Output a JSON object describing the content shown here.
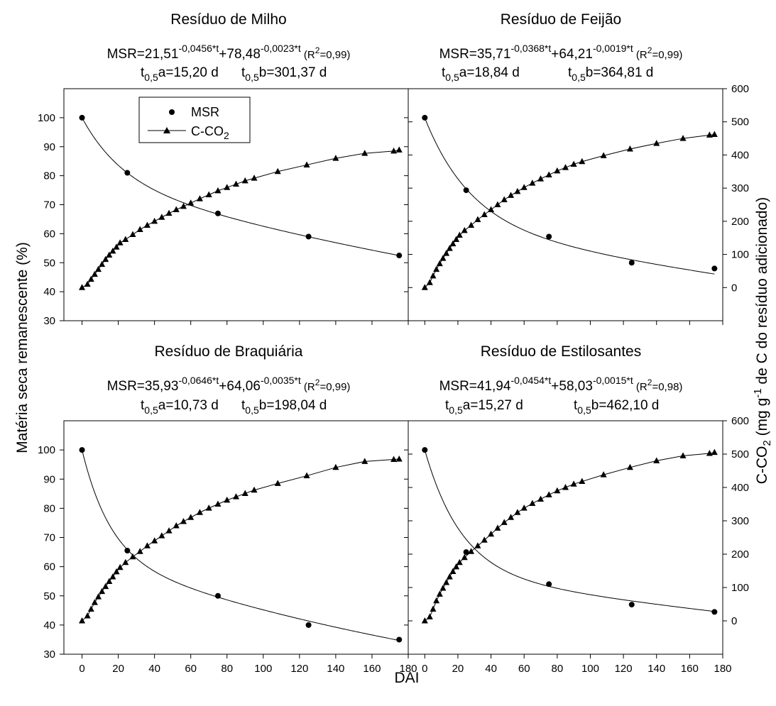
{
  "figure": {
    "xlabel": "DAI",
    "ylabel_left": "Matéria seca remanescente (%)",
    "ylabel_right_parts": {
      "a": "C-CO",
      "b": "2",
      "c": " (mg g",
      "d": "-1",
      "e": " de C do resíduo adicionado)"
    },
    "legend": {
      "msr_label": "MSR",
      "cco2_label": "C-CO",
      "cco2_sub": "2",
      "position": "top-left of first panel"
    },
    "colors": {
      "line": "#000000",
      "background": "#ffffff"
    }
  },
  "chart_data": [
    {
      "type": "scatter",
      "title": "Resíduo de Milho",
      "equation": {
        "prefix": "MSR=21,51",
        "exp1": "-0,0456*t",
        "mid": "+78,48",
        "exp2": "-0,0023*t",
        "r2_open": " (R",
        "r2_exp": "2",
        "r2_close": "=0,99)"
      },
      "half_life": {
        "t_a": "t",
        "sub_a": "0,5",
        "val_a": "a=15,20 d",
        "t_b": "t",
        "sub_b": "0,5",
        "val_b": "b=301,37 d"
      },
      "xlim": [
        -10,
        180
      ],
      "ylim_left": [
        30,
        110
      ],
      "ylim_right": [
        -100,
        600
      ],
      "x_ticks": [
        0,
        20,
        40,
        60,
        80,
        100,
        120,
        140,
        160,
        180
      ],
      "y_left_ticks": [
        30,
        40,
        50,
        60,
        70,
        80,
        90,
        100
      ],
      "y_right_ticks": [
        0,
        100,
        200,
        300,
        400,
        500,
        600
      ],
      "model": {
        "a": 21.51,
        "ka": 0.0456,
        "b": 78.48,
        "kb": 0.0023
      },
      "series": [
        {
          "name": "MSR",
          "axis": "left",
          "marker": "circle",
          "x": [
            0,
            25,
            75,
            125,
            175
          ],
          "y": [
            100,
            81,
            67,
            59,
            52.5
          ]
        },
        {
          "name": "C-CO2",
          "axis": "right",
          "marker": "triangle",
          "x": [
            0,
            3,
            5,
            7,
            9,
            11,
            13,
            15,
            17,
            19,
            21,
            24,
            28,
            32,
            36,
            40,
            44,
            48,
            52,
            56,
            60,
            65,
            70,
            75,
            80,
            85,
            90,
            95,
            108,
            124,
            140,
            156,
            172,
            175
          ],
          "y": [
            0,
            10,
            25,
            40,
            55,
            70,
            85,
            98,
            110,
            122,
            135,
            145,
            160,
            175,
            188,
            200,
            212,
            224,
            235,
            245,
            255,
            268,
            280,
            292,
            302,
            312,
            322,
            330,
            350,
            370,
            390,
            405,
            412,
            415
          ]
        }
      ]
    },
    {
      "type": "scatter",
      "title": "Resíduo de Feijão",
      "equation": {
        "prefix": "MSR=35,71",
        "exp1": "-0,0368*t",
        "mid": "+64,21",
        "exp2": "-0,0019*t",
        "r2_open": " (R",
        "r2_exp": "2",
        "r2_close": "=0,99)"
      },
      "half_life": {
        "t_a": "t",
        "sub_a": "0,5",
        "val_a": "a=18,84 d",
        "t_b": "t",
        "sub_b": "0,5",
        "val_b": "b=364,81 d"
      },
      "xlim": [
        -10,
        180
      ],
      "ylim_left": [
        30,
        110
      ],
      "ylim_right": [
        -100,
        600
      ],
      "x_ticks": [
        0,
        20,
        40,
        60,
        80,
        100,
        120,
        140,
        160,
        180
      ],
      "y_left_ticks": [
        30,
        40,
        50,
        60,
        70,
        80,
        90,
        100
      ],
      "y_right_ticks": [
        0,
        100,
        200,
        300,
        400,
        500,
        600
      ],
      "model": {
        "a": 35.71,
        "ka": 0.0368,
        "b": 64.21,
        "kb": 0.0019
      },
      "series": [
        {
          "name": "MSR",
          "axis": "left",
          "marker": "circle",
          "x": [
            0,
            25,
            75,
            125,
            175
          ],
          "y": [
            100,
            75,
            59,
            50,
            48
          ]
        },
        {
          "name": "C-CO2",
          "axis": "right",
          "marker": "triangle",
          "x": [
            0,
            3,
            5,
            7,
            9,
            11,
            13,
            15,
            17,
            19,
            21,
            24,
            28,
            32,
            36,
            40,
            44,
            48,
            52,
            56,
            60,
            65,
            70,
            75,
            80,
            85,
            90,
            95,
            108,
            124,
            140,
            156,
            172,
            175
          ],
          "y": [
            0,
            15,
            35,
            55,
            72,
            88,
            103,
            118,
            132,
            145,
            158,
            172,
            188,
            205,
            220,
            235,
            250,
            265,
            278,
            290,
            302,
            315,
            328,
            340,
            352,
            362,
            372,
            380,
            398,
            418,
            435,
            450,
            460,
            462
          ]
        }
      ]
    },
    {
      "type": "scatter",
      "title": "Resíduo de Braquiária",
      "equation": {
        "prefix": "MSR=35,93",
        "exp1": "-0,0646*t",
        "mid": "+64,06",
        "exp2": "-0,0035*t",
        "r2_open": " (R",
        "r2_exp": "2",
        "r2_close": "=0,99)"
      },
      "half_life": {
        "t_a": "t",
        "sub_a": "0,5",
        "val_a": "a=10,73 d",
        "t_b": "t",
        "sub_b": "0,5",
        "val_b": "b=198,04 d"
      },
      "xlim": [
        -10,
        180
      ],
      "ylim_left": [
        30,
        110
      ],
      "ylim_right": [
        -100,
        600
      ],
      "x_ticks": [
        0,
        20,
        40,
        60,
        80,
        100,
        120,
        140,
        160,
        180
      ],
      "y_left_ticks": [
        30,
        40,
        50,
        60,
        70,
        80,
        90,
        100
      ],
      "y_right_ticks": [
        0,
        100,
        200,
        300,
        400,
        500,
        600
      ],
      "model": {
        "a": 35.93,
        "ka": 0.0646,
        "b": 64.06,
        "kb": 0.0035
      },
      "series": [
        {
          "name": "MSR",
          "axis": "left",
          "marker": "circle",
          "x": [
            0,
            25,
            75,
            125,
            175
          ],
          "y": [
            100,
            65.5,
            50,
            40,
            35
          ]
        },
        {
          "name": "C-CO2",
          "axis": "right",
          "marker": "triangle",
          "x": [
            0,
            3,
            5,
            7,
            9,
            11,
            13,
            15,
            17,
            19,
            21,
            24,
            28,
            32,
            36,
            40,
            44,
            48,
            52,
            56,
            60,
            65,
            70,
            75,
            80,
            85,
            90,
            95,
            108,
            124,
            140,
            156,
            172,
            175
          ],
          "y": [
            0,
            15,
            35,
            55,
            72,
            88,
            103,
            118,
            132,
            147,
            160,
            175,
            192,
            208,
            225,
            240,
            255,
            270,
            285,
            298,
            310,
            325,
            338,
            350,
            362,
            372,
            382,
            392,
            412,
            435,
            460,
            478,
            484,
            485
          ]
        }
      ]
    },
    {
      "type": "scatter",
      "title": "Resíduo de Estilosantes",
      "equation": {
        "prefix": "MSR=41,94",
        "exp1": "-0,0454*t",
        "mid": "+58,03",
        "exp2": "-0,0015*t",
        "r2_open": " (R",
        "r2_exp": "2",
        "r2_close": "=0,98)"
      },
      "half_life": {
        "t_a": "t",
        "sub_a": "0,5",
        "val_a": "a=15,27 d",
        "t_b": "t",
        "sub_b": "0,5",
        "val_b": "b=462,10 d"
      },
      "xlim": [
        -10,
        180
      ],
      "ylim_left": [
        30,
        110
      ],
      "ylim_right": [
        -100,
        600
      ],
      "x_ticks": [
        0,
        20,
        40,
        60,
        80,
        100,
        120,
        140,
        160,
        180
      ],
      "y_left_ticks": [
        30,
        40,
        50,
        60,
        70,
        80,
        90,
        100
      ],
      "y_right_ticks": [
        0,
        100,
        200,
        300,
        400,
        500,
        600
      ],
      "model": {
        "a": 41.94,
        "ka": 0.0454,
        "b": 58.03,
        "kb": 0.0015
      },
      "series": [
        {
          "name": "MSR",
          "axis": "left",
          "marker": "circle",
          "x": [
            0,
            25,
            75,
            125,
            175
          ],
          "y": [
            100,
            65,
            54,
            47,
            44.5
          ]
        },
        {
          "name": "C-CO2",
          "axis": "right",
          "marker": "triangle",
          "x": [
            0,
            3,
            5,
            7,
            9,
            11,
            13,
            15,
            17,
            19,
            21,
            24,
            28,
            32,
            36,
            40,
            44,
            48,
            52,
            56,
            60,
            65,
            70,
            75,
            80,
            85,
            90,
            95,
            108,
            124,
            140,
            156,
            172,
            175
          ],
          "y": [
            0,
            12,
            35,
            60,
            80,
            98,
            115,
            132,
            148,
            162,
            175,
            190,
            208,
            225,
            242,
            260,
            278,
            295,
            310,
            325,
            338,
            352,
            365,
            378,
            390,
            400,
            410,
            418,
            438,
            460,
            480,
            495,
            502,
            505
          ]
        }
      ]
    }
  ]
}
